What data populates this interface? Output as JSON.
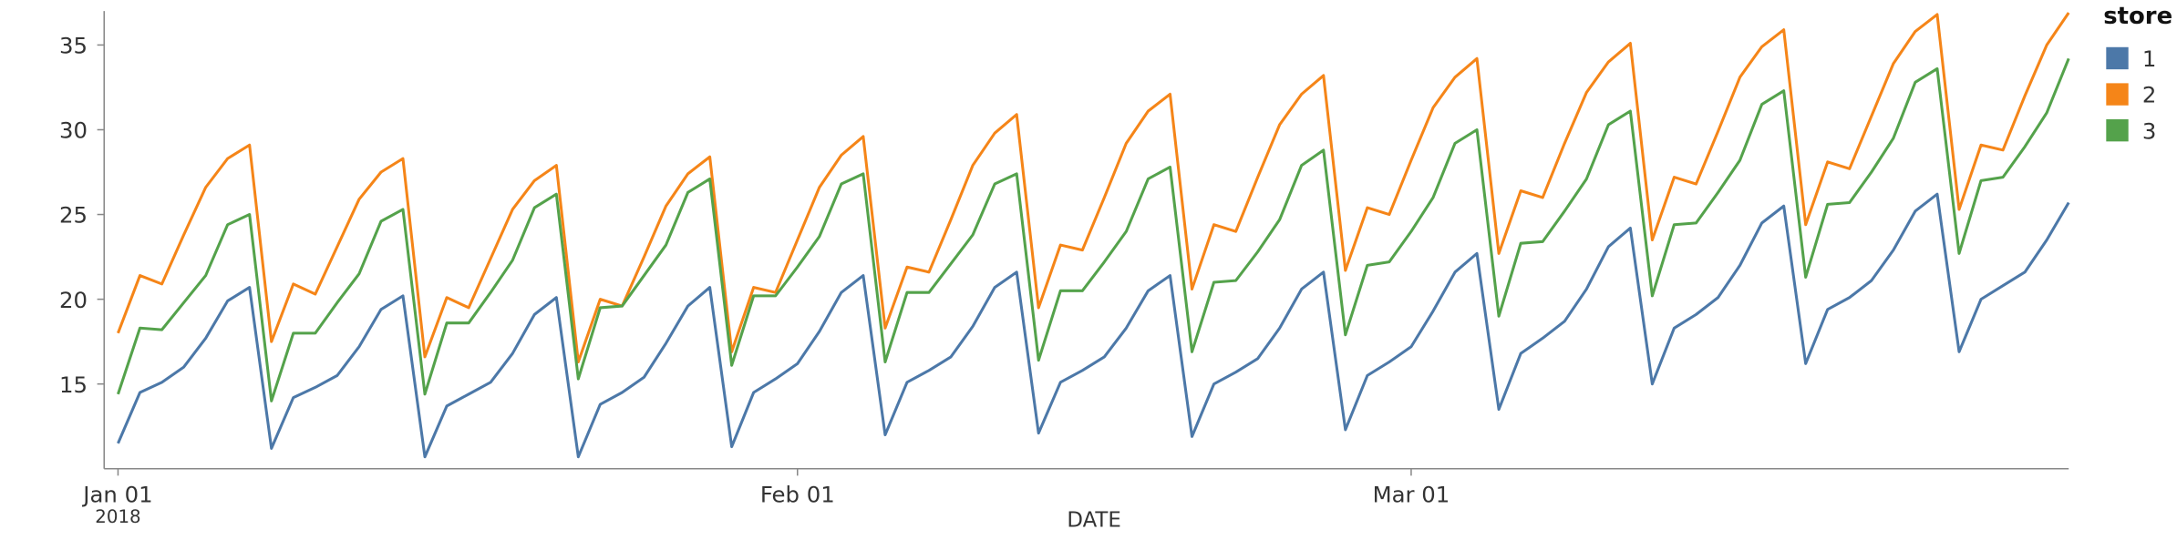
{
  "chart_data": {
    "type": "line",
    "x_label": "DATE",
    "x_year_label": "2018",
    "legend_title": "store",
    "x": [
      "2018-01-01",
      "2018-01-02",
      "2018-01-03",
      "2018-01-04",
      "2018-01-05",
      "2018-01-06",
      "2018-01-07",
      "2018-01-08",
      "2018-01-09",
      "2018-01-10",
      "2018-01-11",
      "2018-01-12",
      "2018-01-13",
      "2018-01-14",
      "2018-01-15",
      "2018-01-16",
      "2018-01-17",
      "2018-01-18",
      "2018-01-19",
      "2018-01-20",
      "2018-01-21",
      "2018-01-22",
      "2018-01-23",
      "2018-01-24",
      "2018-01-25",
      "2018-01-26",
      "2018-01-27",
      "2018-01-28",
      "2018-01-29",
      "2018-01-30",
      "2018-01-31",
      "2018-02-01",
      "2018-02-02",
      "2018-02-03",
      "2018-02-04",
      "2018-02-05",
      "2018-02-06",
      "2018-02-07",
      "2018-02-08",
      "2018-02-09",
      "2018-02-10",
      "2018-02-11",
      "2018-02-12",
      "2018-02-13",
      "2018-02-14",
      "2018-02-15",
      "2018-02-16",
      "2018-02-17",
      "2018-02-18",
      "2018-02-19",
      "2018-02-20",
      "2018-02-21",
      "2018-02-22",
      "2018-02-23",
      "2018-02-24",
      "2018-02-25",
      "2018-02-26",
      "2018-02-27",
      "2018-02-28",
      "2018-03-01",
      "2018-03-02",
      "2018-03-03",
      "2018-03-04",
      "2018-03-05",
      "2018-03-06",
      "2018-03-07",
      "2018-03-08",
      "2018-03-09",
      "2018-03-10",
      "2018-03-11",
      "2018-03-12",
      "2018-03-13",
      "2018-03-14",
      "2018-03-15",
      "2018-03-16",
      "2018-03-17",
      "2018-03-18",
      "2018-03-19",
      "2018-03-20",
      "2018-03-21",
      "2018-03-22",
      "2018-03-23",
      "2018-03-24",
      "2018-03-25",
      "2018-03-26",
      "2018-03-27",
      "2018-03-28",
      "2018-03-29",
      "2018-03-30",
      "2018-03-31"
    ],
    "series": [
      {
        "name": "1",
        "color": "#4c78a8",
        "values": [
          11.5,
          14.5,
          15.1,
          16,
          17.7,
          19.9,
          20.7,
          11.2,
          14.2,
          14.8,
          15.5,
          17.2,
          19.4,
          20.2,
          10.7,
          13.7,
          14.4,
          15.1,
          16.8,
          19.1,
          20.1,
          10.7,
          13.8,
          14.5,
          15.4,
          17.4,
          19.6,
          20.7,
          11.3,
          14.5,
          15.3,
          16.2,
          18.1,
          20.4,
          21.4,
          12,
          15.1,
          15.8,
          16.6,
          18.4,
          20.7,
          21.6,
          12.1,
          15.1,
          15.8,
          16.6,
          18.3,
          20.5,
          21.4,
          11.9,
          15,
          15.7,
          16.5,
          18.3,
          20.6,
          21.6,
          12.3,
          15.5,
          16.3,
          17.2,
          19.3,
          21.6,
          22.7,
          13.5,
          16.8,
          17.7,
          18.7,
          20.6,
          23.1,
          24.2,
          15,
          18.3,
          19.1,
          20.1,
          22,
          24.5,
          25.5,
          16.2,
          19.4,
          20.1,
          21.1,
          22.9,
          25.2,
          26.2,
          16.9,
          20,
          20.8,
          21.6,
          23.5,
          25.7
        ]
      },
      {
        "name": "2",
        "color": "#f58518",
        "values": [
          18,
          21.4,
          20.9,
          23.8,
          26.6,
          28.3,
          29.1,
          17.5,
          20.9,
          20.3,
          23.1,
          25.9,
          27.5,
          28.3,
          16.6,
          20.1,
          19.5,
          22.4,
          25.3,
          27,
          27.9,
          16.3,
          20,
          19.6,
          22.5,
          25.5,
          27.4,
          28.4,
          16.9,
          20.7,
          20.4,
          23.5,
          26.6,
          28.5,
          29.6,
          18.3,
          21.9,
          21.6,
          24.7,
          27.9,
          29.8,
          30.9,
          19.5,
          23.2,
          22.9,
          26,
          29.2,
          31.1,
          32.1,
          20.6,
          24.4,
          24,
          27.2,
          30.3,
          32.1,
          33.2,
          21.7,
          25.4,
          25,
          28.2,
          31.3,
          33.1,
          34.2,
          22.7,
          26.4,
          26,
          29.2,
          32.2,
          34,
          35.1,
          23.5,
          27.2,
          26.8,
          29.9,
          33.1,
          34.9,
          35.9,
          24.4,
          28.1,
          27.7,
          30.8,
          33.9,
          35.8,
          36.8,
          25.3,
          29.1,
          28.8,
          32,
          35,
          36.9
        ]
      },
      {
        "name": "3",
        "color": "#54a24b",
        "values": [
          14.4,
          18.3,
          18.2,
          19.8,
          21.4,
          24.4,
          25,
          14,
          18,
          18,
          19.8,
          21.5,
          24.6,
          25.3,
          14.4,
          18.6,
          18.6,
          20.4,
          22.3,
          25.4,
          26.2,
          15.3,
          19.5,
          19.6,
          21.4,
          23.2,
          26.3,
          27.1,
          16.1,
          20.2,
          20.2,
          21.9,
          23.7,
          26.8,
          27.4,
          16.3,
          20.4,
          20.4,
          22.1,
          23.8,
          26.8,
          27.4,
          16.4,
          20.5,
          20.5,
          22.2,
          24,
          27.1,
          27.8,
          16.9,
          21,
          21.1,
          22.8,
          24.7,
          27.9,
          28.8,
          17.9,
          22,
          22.2,
          24,
          26,
          29.2,
          30,
          19,
          23.3,
          23.4,
          25.2,
          27.1,
          30.3,
          31.1,
          20.2,
          24.4,
          24.5,
          26.3,
          28.2,
          31.5,
          32.3,
          21.3,
          25.6,
          25.7,
          27.5,
          29.5,
          32.8,
          33.6,
          22.7,
          27,
          27.2,
          29,
          31,
          34.2
        ]
      }
    ],
    "xlim": [
      "2018-01-01",
      "2018-03-31"
    ],
    "xticks": [
      {
        "value": "2018-01-01",
        "label": "Jan 01"
      },
      {
        "value": "2018-02-01",
        "label": "Feb 01"
      },
      {
        "value": "2018-03-01",
        "label": "Mar 01"
      }
    ],
    "ylim": [
      10,
      37
    ],
    "yticks": [
      15,
      20,
      25,
      30,
      35
    ],
    "grid": false,
    "legend": "right"
  }
}
